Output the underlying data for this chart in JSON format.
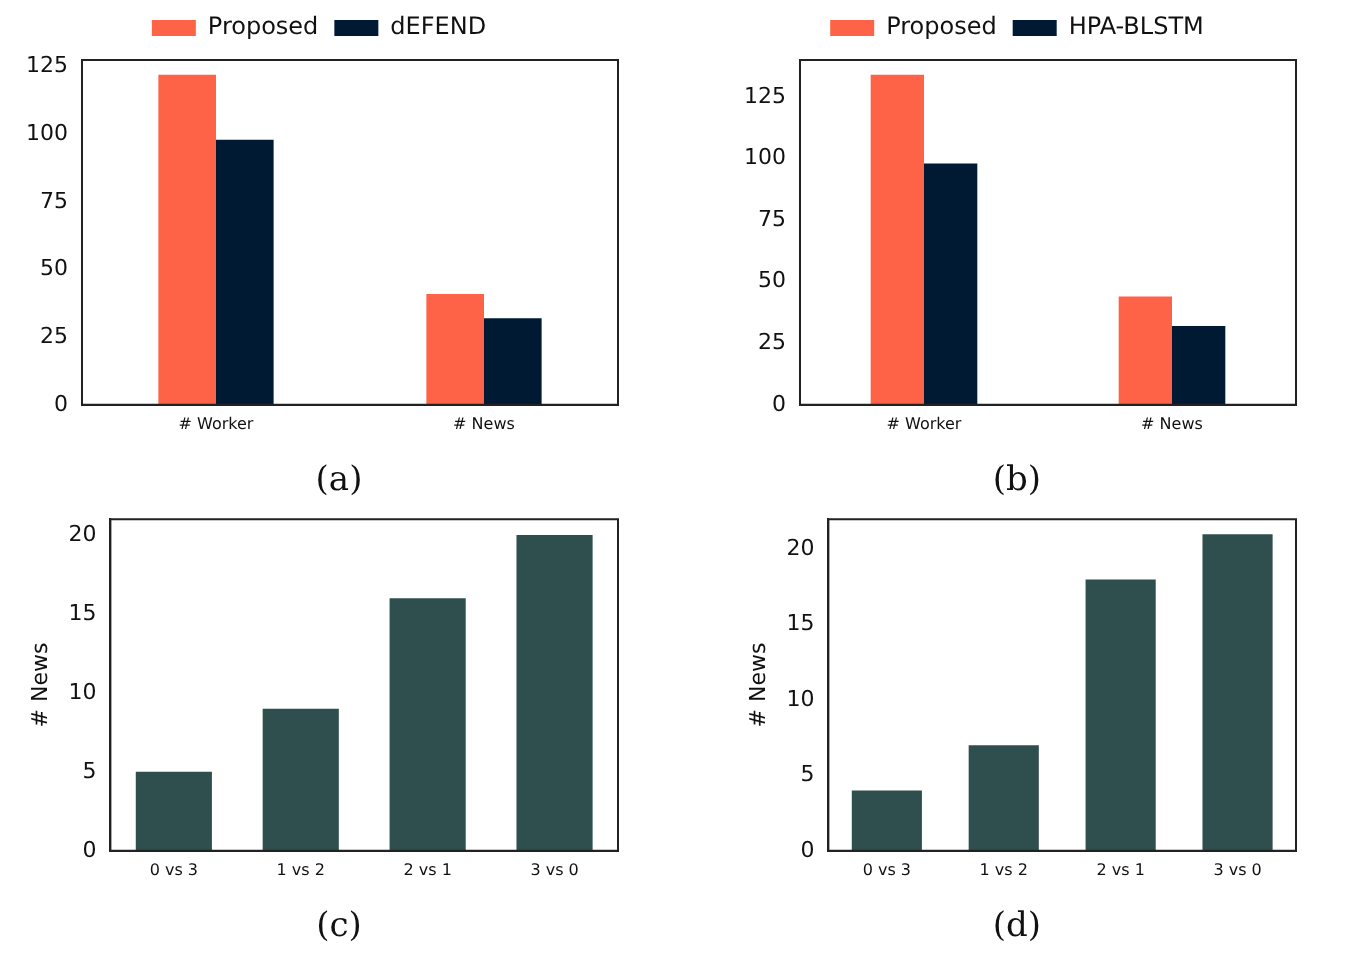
{
  "chart_data": [
    {
      "type": "bar",
      "categories": [
        "# Worker",
        "# News"
      ],
      "series": [
        {
          "name": "Proposed",
          "color": "#ff6347",
          "values": [
            122,
            41
          ]
        },
        {
          "name": "dEFEND",
          "color": "#001a33",
          "values": [
            98,
            32
          ]
        }
      ],
      "ylim": [
        0,
        127.5
      ],
      "yticks": [
        0,
        25,
        50,
        75,
        100,
        125
      ],
      "grid": false,
      "legend": "top",
      "annotations": [
        "(a)"
      ]
    },
    {
      "type": "bar",
      "categories": [
        "# Worker",
        "# News"
      ],
      "series": [
        {
          "name": "Proposed",
          "color": "#ff6347",
          "values": [
            134,
            44
          ]
        },
        {
          "name": "HPA-BLSTM",
          "color": "#001a33",
          "values": [
            98,
            32
          ]
        }
      ],
      "ylim": [
        0,
        140
      ],
      "yticks": [
        0,
        25,
        50,
        75,
        100,
        125
      ],
      "grid": false,
      "legend": "top",
      "annotations": [
        "(b)"
      ]
    },
    {
      "type": "bar",
      "categories": [
        "0 vs 3",
        "1 vs 2",
        "2 vs 1",
        "3 vs 0"
      ],
      "values": [
        5,
        9,
        16,
        20
      ],
      "color": "#2f4f4f",
      "ylabel": "# News",
      "ylim": [
        0,
        21
      ],
      "yticks": [
        0,
        5,
        10,
        15,
        20
      ],
      "grid": false,
      "annotations": [
        "(c)"
      ]
    },
    {
      "type": "bar",
      "categories": [
        "0 vs 3",
        "1 vs 2",
        "2 vs 1",
        "3 vs 0"
      ],
      "values": [
        4,
        7,
        18,
        21
      ],
      "color": "#2f4f4f",
      "ylabel": "# News",
      "ylim": [
        0,
        22
      ],
      "yticks": [
        0,
        5,
        10,
        15,
        20
      ],
      "grid": false,
      "annotations": [
        "(d)"
      ]
    }
  ]
}
